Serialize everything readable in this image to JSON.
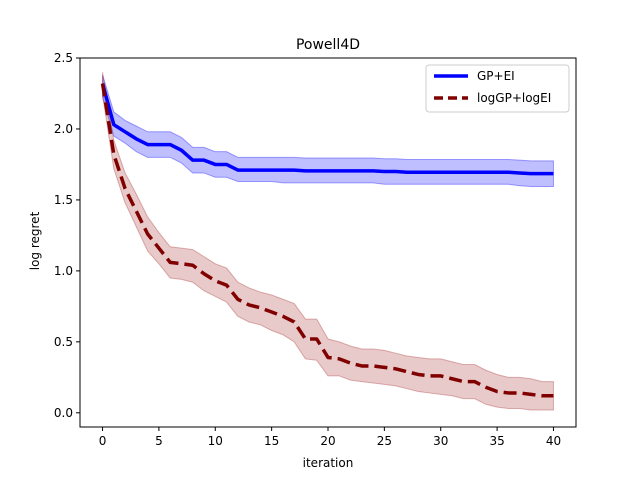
{
  "chart_data": {
    "type": "line",
    "title": "Powell4D",
    "xlabel": "iteration",
    "ylabel": "log regret",
    "xlim": [
      -2,
      42
    ],
    "ylim": [
      -0.1,
      2.5
    ],
    "xticks": [
      0,
      5,
      10,
      15,
      20,
      25,
      30,
      35,
      40
    ],
    "yticks": [
      0.0,
      0.5,
      1.0,
      1.5,
      2.0,
      2.5
    ],
    "xtick_labels": [
      "0",
      "5",
      "10",
      "15",
      "20",
      "25",
      "30",
      "35",
      "40"
    ],
    "ytick_labels": [
      "0.0",
      "0.5",
      "1.0",
      "1.5",
      "2.0",
      "2.5"
    ],
    "grid": false,
    "legend_position": "top-right",
    "x": [
      0,
      1,
      2,
      3,
      4,
      5,
      6,
      7,
      8,
      9,
      10,
      11,
      12,
      13,
      14,
      15,
      16,
      17,
      18,
      19,
      20,
      21,
      22,
      23,
      24,
      25,
      26,
      27,
      28,
      29,
      30,
      31,
      32,
      33,
      34,
      35,
      36,
      37,
      38,
      39,
      40
    ],
    "series": [
      {
        "name": "GP+EI",
        "color": "#0000ff",
        "band_color": "#0000ff",
        "linestyle": "solid",
        "mean": [
          2.32,
          2.03,
          1.98,
          1.93,
          1.89,
          1.89,
          1.89,
          1.85,
          1.78,
          1.78,
          1.75,
          1.75,
          1.71,
          1.71,
          1.71,
          1.71,
          1.71,
          1.71,
          1.705,
          1.705,
          1.705,
          1.705,
          1.705,
          1.705,
          1.705,
          1.7,
          1.7,
          1.695,
          1.695,
          1.695,
          1.695,
          1.695,
          1.695,
          1.695,
          1.695,
          1.695,
          1.695,
          1.69,
          1.685,
          1.685,
          1.685
        ],
        "lower": [
          2.22,
          1.95,
          1.9,
          1.84,
          1.8,
          1.8,
          1.8,
          1.76,
          1.69,
          1.69,
          1.66,
          1.66,
          1.63,
          1.63,
          1.63,
          1.63,
          1.62,
          1.62,
          1.62,
          1.62,
          1.62,
          1.62,
          1.62,
          1.62,
          1.62,
          1.61,
          1.61,
          1.61,
          1.61,
          1.61,
          1.61,
          1.61,
          1.61,
          1.61,
          1.61,
          1.61,
          1.61,
          1.6,
          1.595,
          1.595,
          1.595
        ],
        "upper": [
          2.38,
          2.12,
          2.06,
          2.02,
          1.98,
          1.98,
          1.98,
          1.94,
          1.87,
          1.87,
          1.84,
          1.84,
          1.8,
          1.8,
          1.8,
          1.8,
          1.8,
          1.8,
          1.795,
          1.795,
          1.795,
          1.795,
          1.795,
          1.795,
          1.795,
          1.79,
          1.79,
          1.785,
          1.785,
          1.785,
          1.785,
          1.785,
          1.785,
          1.785,
          1.785,
          1.785,
          1.785,
          1.78,
          1.775,
          1.775,
          1.775
        ]
      },
      {
        "name": "logGP+logEI",
        "color": "#800000",
        "band_color": "#a52a2a",
        "linestyle": "dashed",
        "mean": [
          2.32,
          1.82,
          1.58,
          1.42,
          1.26,
          1.16,
          1.06,
          1.05,
          1.04,
          0.98,
          0.93,
          0.9,
          0.8,
          0.76,
          0.74,
          0.71,
          0.68,
          0.64,
          0.52,
          0.52,
          0.39,
          0.38,
          0.35,
          0.33,
          0.33,
          0.32,
          0.31,
          0.29,
          0.27,
          0.26,
          0.26,
          0.24,
          0.22,
          0.22,
          0.18,
          0.15,
          0.14,
          0.14,
          0.13,
          0.12,
          0.12
        ],
        "lower": [
          2.24,
          1.72,
          1.48,
          1.31,
          1.14,
          1.05,
          0.95,
          0.94,
          0.92,
          0.86,
          0.82,
          0.78,
          0.68,
          0.64,
          0.62,
          0.58,
          0.55,
          0.5,
          0.38,
          0.37,
          0.26,
          0.26,
          0.23,
          0.22,
          0.21,
          0.2,
          0.19,
          0.17,
          0.15,
          0.14,
          0.13,
          0.12,
          0.1,
          0.1,
          0.06,
          0.04,
          0.03,
          0.03,
          0.02,
          0.02,
          0.02
        ],
        "upper": [
          2.4,
          1.92,
          1.69,
          1.54,
          1.38,
          1.27,
          1.17,
          1.16,
          1.15,
          1.1,
          1.05,
          1.02,
          0.92,
          0.88,
          0.85,
          0.83,
          0.8,
          0.77,
          0.66,
          0.66,
          0.52,
          0.5,
          0.47,
          0.45,
          0.45,
          0.44,
          0.42,
          0.4,
          0.39,
          0.38,
          0.38,
          0.36,
          0.34,
          0.34,
          0.3,
          0.27,
          0.25,
          0.25,
          0.24,
          0.22,
          0.22
        ]
      }
    ]
  }
}
